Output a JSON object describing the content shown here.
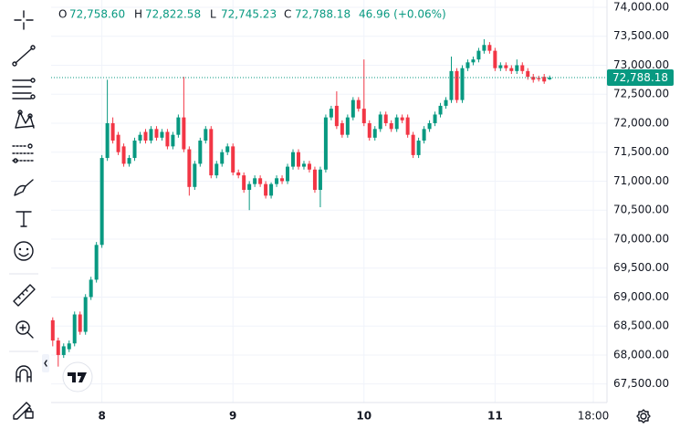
{
  "chart_data": {
    "type": "candlestick",
    "legend": [
      {
        "key": "O",
        "value": "72,758.60"
      },
      {
        "key": "H",
        "value": "72,822.58"
      },
      {
        "key": "L",
        "value": "72,745.23"
      },
      {
        "key": "C",
        "value": "72,788.18"
      }
    ],
    "change": "46.96 (+0.06%)",
    "last_price_label": "72,788.18",
    "up_color": "#089981",
    "down_color": "#f23645",
    "grid": true,
    "x": [
      -9,
      -8,
      -7,
      -6,
      -5,
      -4,
      -3,
      -2,
      -1,
      0,
      1,
      2,
      3,
      4,
      5,
      6,
      7,
      8,
      9,
      10,
      11,
      12,
      13,
      14,
      15,
      16,
      17,
      18,
      19,
      20,
      21,
      22,
      23,
      24,
      25,
      26,
      27,
      28,
      29,
      30,
      31,
      32,
      33,
      34,
      35,
      36,
      37,
      38,
      39,
      40,
      41,
      42,
      43,
      44,
      45,
      46,
      47,
      48,
      49,
      50,
      51,
      52,
      53,
      54,
      55,
      56,
      57,
      58,
      59,
      60,
      61,
      62,
      63,
      64,
      65,
      66,
      67,
      68,
      69,
      70,
      71,
      72,
      73,
      74,
      75,
      76,
      77,
      78,
      79,
      80,
      81,
      82
    ],
    "open": [
      68600,
      68250,
      68000,
      68100,
      68200,
      68700,
      68400,
      69000,
      69300,
      69900,
      71400,
      72000,
      71800,
      71600,
      71300,
      71400,
      71700,
      71850,
      71700,
      71900,
      71750,
      71850,
      71600,
      71800,
      72100,
      71550,
      70900,
      71300,
      71700,
      71900,
      71100,
      71300,
      71500,
      71600,
      71150,
      71100,
      70850,
      70950,
      71050,
      70950,
      70750,
      70950,
      71050,
      71000,
      71250,
      71500,
      71250,
      71300,
      71200,
      70850,
      71200,
      72100,
      72300,
      72000,
      71800,
      72100,
      72400,
      72250,
      72000,
      71750,
      71900,
      72150,
      72000,
      71900,
      72100,
      72100,
      71800,
      71450,
      71700,
      71900,
      72000,
      72150,
      72300,
      72400,
      72900,
      72400,
      72950,
      73050,
      73100,
      73250,
      73350,
      73250,
      72950,
      73000,
      72950,
      72900,
      73000,
      72900,
      72800,
      72780,
      72800,
      72758.6
    ],
    "high": [
      68650,
      68300,
      68200,
      68250,
      68750,
      68750,
      69050,
      69350,
      69950,
      71450,
      72750,
      72100,
      71850,
      71650,
      71450,
      71750,
      71850,
      71900,
      71950,
      71950,
      71900,
      71900,
      71850,
      72150,
      72800,
      71600,
      71350,
      71750,
      71950,
      71950,
      71350,
      71550,
      71650,
      71650,
      71200,
      71150,
      71000,
      71100,
      71100,
      71000,
      70980,
      71100,
      71100,
      71300,
      71550,
      71550,
      71350,
      71350,
      71250,
      71250,
      72150,
      72300,
      72550,
      72050,
      72150,
      72450,
      72450,
      73100,
      72050,
      71950,
      72200,
      72200,
      72050,
      72150,
      72150,
      72150,
      71850,
      71750,
      71950,
      72050,
      72200,
      72350,
      72450,
      73150,
      72950,
      73000,
      73100,
      73150,
      73300,
      73450,
      73400,
      73300,
      73050,
      73050,
      73000,
      73100,
      73050,
      72950,
      72850,
      72820,
      72850,
      72822.58
    ],
    "low": [
      68150,
      67800,
      67950,
      68050,
      68150,
      68350,
      68350,
      68950,
      69250,
      69850,
      71350,
      71650,
      71450,
      71250,
      71250,
      71350,
      71650,
      71650,
      71650,
      71700,
      71700,
      71550,
      71550,
      71750,
      71500,
      70750,
      70850,
      71250,
      71650,
      71050,
      71050,
      71250,
      71450,
      71100,
      71050,
      70800,
      70500,
      70900,
      70900,
      70700,
      70700,
      70900,
      70950,
      70950,
      71200,
      71200,
      71200,
      71150,
      70800,
      70550,
      71150,
      72050,
      71900,
      71750,
      71750,
      72050,
      72200,
      71950,
      71700,
      71700,
      71850,
      71950,
      71850,
      71850,
      72000,
      71750,
      71400,
      71400,
      71650,
      71850,
      71950,
      72100,
      72250,
      72350,
      72350,
      72350,
      72900,
      73000,
      73050,
      73200,
      73200,
      72900,
      72900,
      72900,
      72850,
      72850,
      72850,
      72750,
      72700,
      72720,
      72680,
      72745.23
    ],
    "close": [
      68250,
      68000,
      68150,
      68200,
      68700,
      68400,
      69000,
      69300,
      69900,
      71400,
      72000,
      71700,
      71500,
      71300,
      71400,
      71700,
      71800,
      71700,
      71900,
      71750,
      71850,
      71600,
      71800,
      72100,
      71550,
      70900,
      71300,
      71700,
      71900,
      71100,
      71300,
      71500,
      71600,
      71150,
      71100,
      70850,
      70950,
      71050,
      70950,
      70750,
      70950,
      71050,
      71000,
      71250,
      71500,
      71250,
      71300,
      71200,
      70850,
      71200,
      72100,
      72250,
      71950,
      71800,
      72100,
      72400,
      72250,
      72000,
      71750,
      71900,
      72150,
      72000,
      71900,
      72100,
      72050,
      71800,
      71450,
      71700,
      71900,
      72000,
      72150,
      72300,
      72400,
      72900,
      72400,
      72950,
      73050,
      73100,
      73250,
      73350,
      73250,
      72950,
      73000,
      72950,
      72900,
      73000,
      72900,
      72800,
      72750,
      72760,
      72720,
      72788.18
    ],
    "xlim": [
      -9.3,
      92.5
    ],
    "xticks": [
      {
        "value": 0,
        "label": "8"
      },
      {
        "value": 24,
        "label": "9"
      },
      {
        "value": 48,
        "label": "10"
      },
      {
        "value": 72,
        "label": "11"
      },
      {
        "value": 90,
        "label": "18:00"
      }
    ],
    "ylim": [
      67180,
      74126
    ],
    "yticks": [
      {
        "value": 67500,
        "label": "67,500.00"
      },
      {
        "value": 68000,
        "label": "68,000.00"
      },
      {
        "value": 68500,
        "label": "68,500.00"
      },
      {
        "value": 69000,
        "label": "69,000.00"
      },
      {
        "value": 69500,
        "label": "69,500.00"
      },
      {
        "value": 70000,
        "label": "70,000.00"
      },
      {
        "value": 70500,
        "label": "70,500.00"
      },
      {
        "value": 71000,
        "label": "71,000.00"
      },
      {
        "value": 71500,
        "label": "71,500.00"
      },
      {
        "value": 72000,
        "label": "72,000.00"
      },
      {
        "value": 72500,
        "label": "72,500.00"
      },
      {
        "value": 73000,
        "label": "73,000.00"
      },
      {
        "value": 73500,
        "label": "73,500.00"
      },
      {
        "value": 74000,
        "label": "74,000.00"
      }
    ]
  }
}
